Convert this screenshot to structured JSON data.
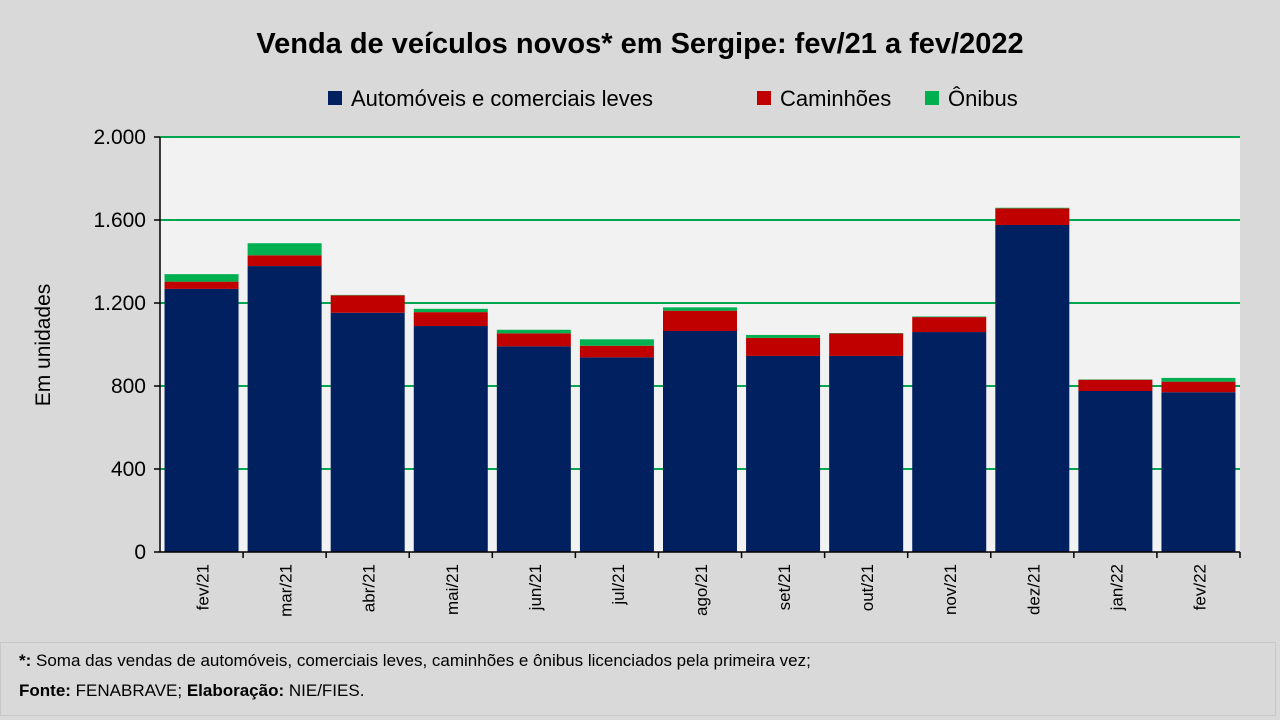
{
  "chart_data": {
    "type": "bar",
    "stacked": true,
    "title": "Venda de veículos novos* em Sergipe: fev/21 a fev/2022",
    "xlabel": "",
    "ylabel": "Em unidades",
    "ylim": [
      0,
      2000
    ],
    "yticks": [
      0,
      400,
      800,
      1200,
      1600,
      2000
    ],
    "ytick_labels": [
      "0",
      "400",
      "800",
      "1.200",
      "1.600",
      "2.000"
    ],
    "grid": true,
    "legend_position": "top",
    "categories": [
      "fev/21",
      "mar/21",
      "abr/21",
      "mai/21",
      "jun/21",
      "jul/21",
      "ago/21",
      "set/21",
      "out/21",
      "nov/21",
      "dez/21",
      "jan/22",
      "fev/22"
    ],
    "series": [
      {
        "name": "Automóveis e comerciais leves",
        "color": "#002060",
        "values": [
          1268,
          1378,
          1153,
          1089,
          991,
          938,
          1065,
          945,
          945,
          1060,
          1576,
          776,
          770
        ]
      },
      {
        "name": "Caminhões",
        "color": "#c00000",
        "values": [
          35,
          52,
          84,
          67,
          63,
          56,
          98,
          87,
          108,
          72,
          80,
          54,
          51
        ]
      },
      {
        "name": "Ônibus",
        "color": "#00b050",
        "values": [
          36,
          58,
          2,
          16,
          17,
          31,
          16,
          14,
          2,
          3,
          3,
          2,
          18
        ]
      }
    ]
  },
  "footnote": {
    "line1_bold": "*:",
    "line1_text": " Soma das vendas de automóveis, comerciais leves, caminhões e ônibus licenciados pela primeira vez;",
    "source_label": "Fonte:",
    "source_text": " FENABRAVE; ",
    "elab_label": "Elaboração:",
    "elab_text": " NIE/FIES."
  }
}
